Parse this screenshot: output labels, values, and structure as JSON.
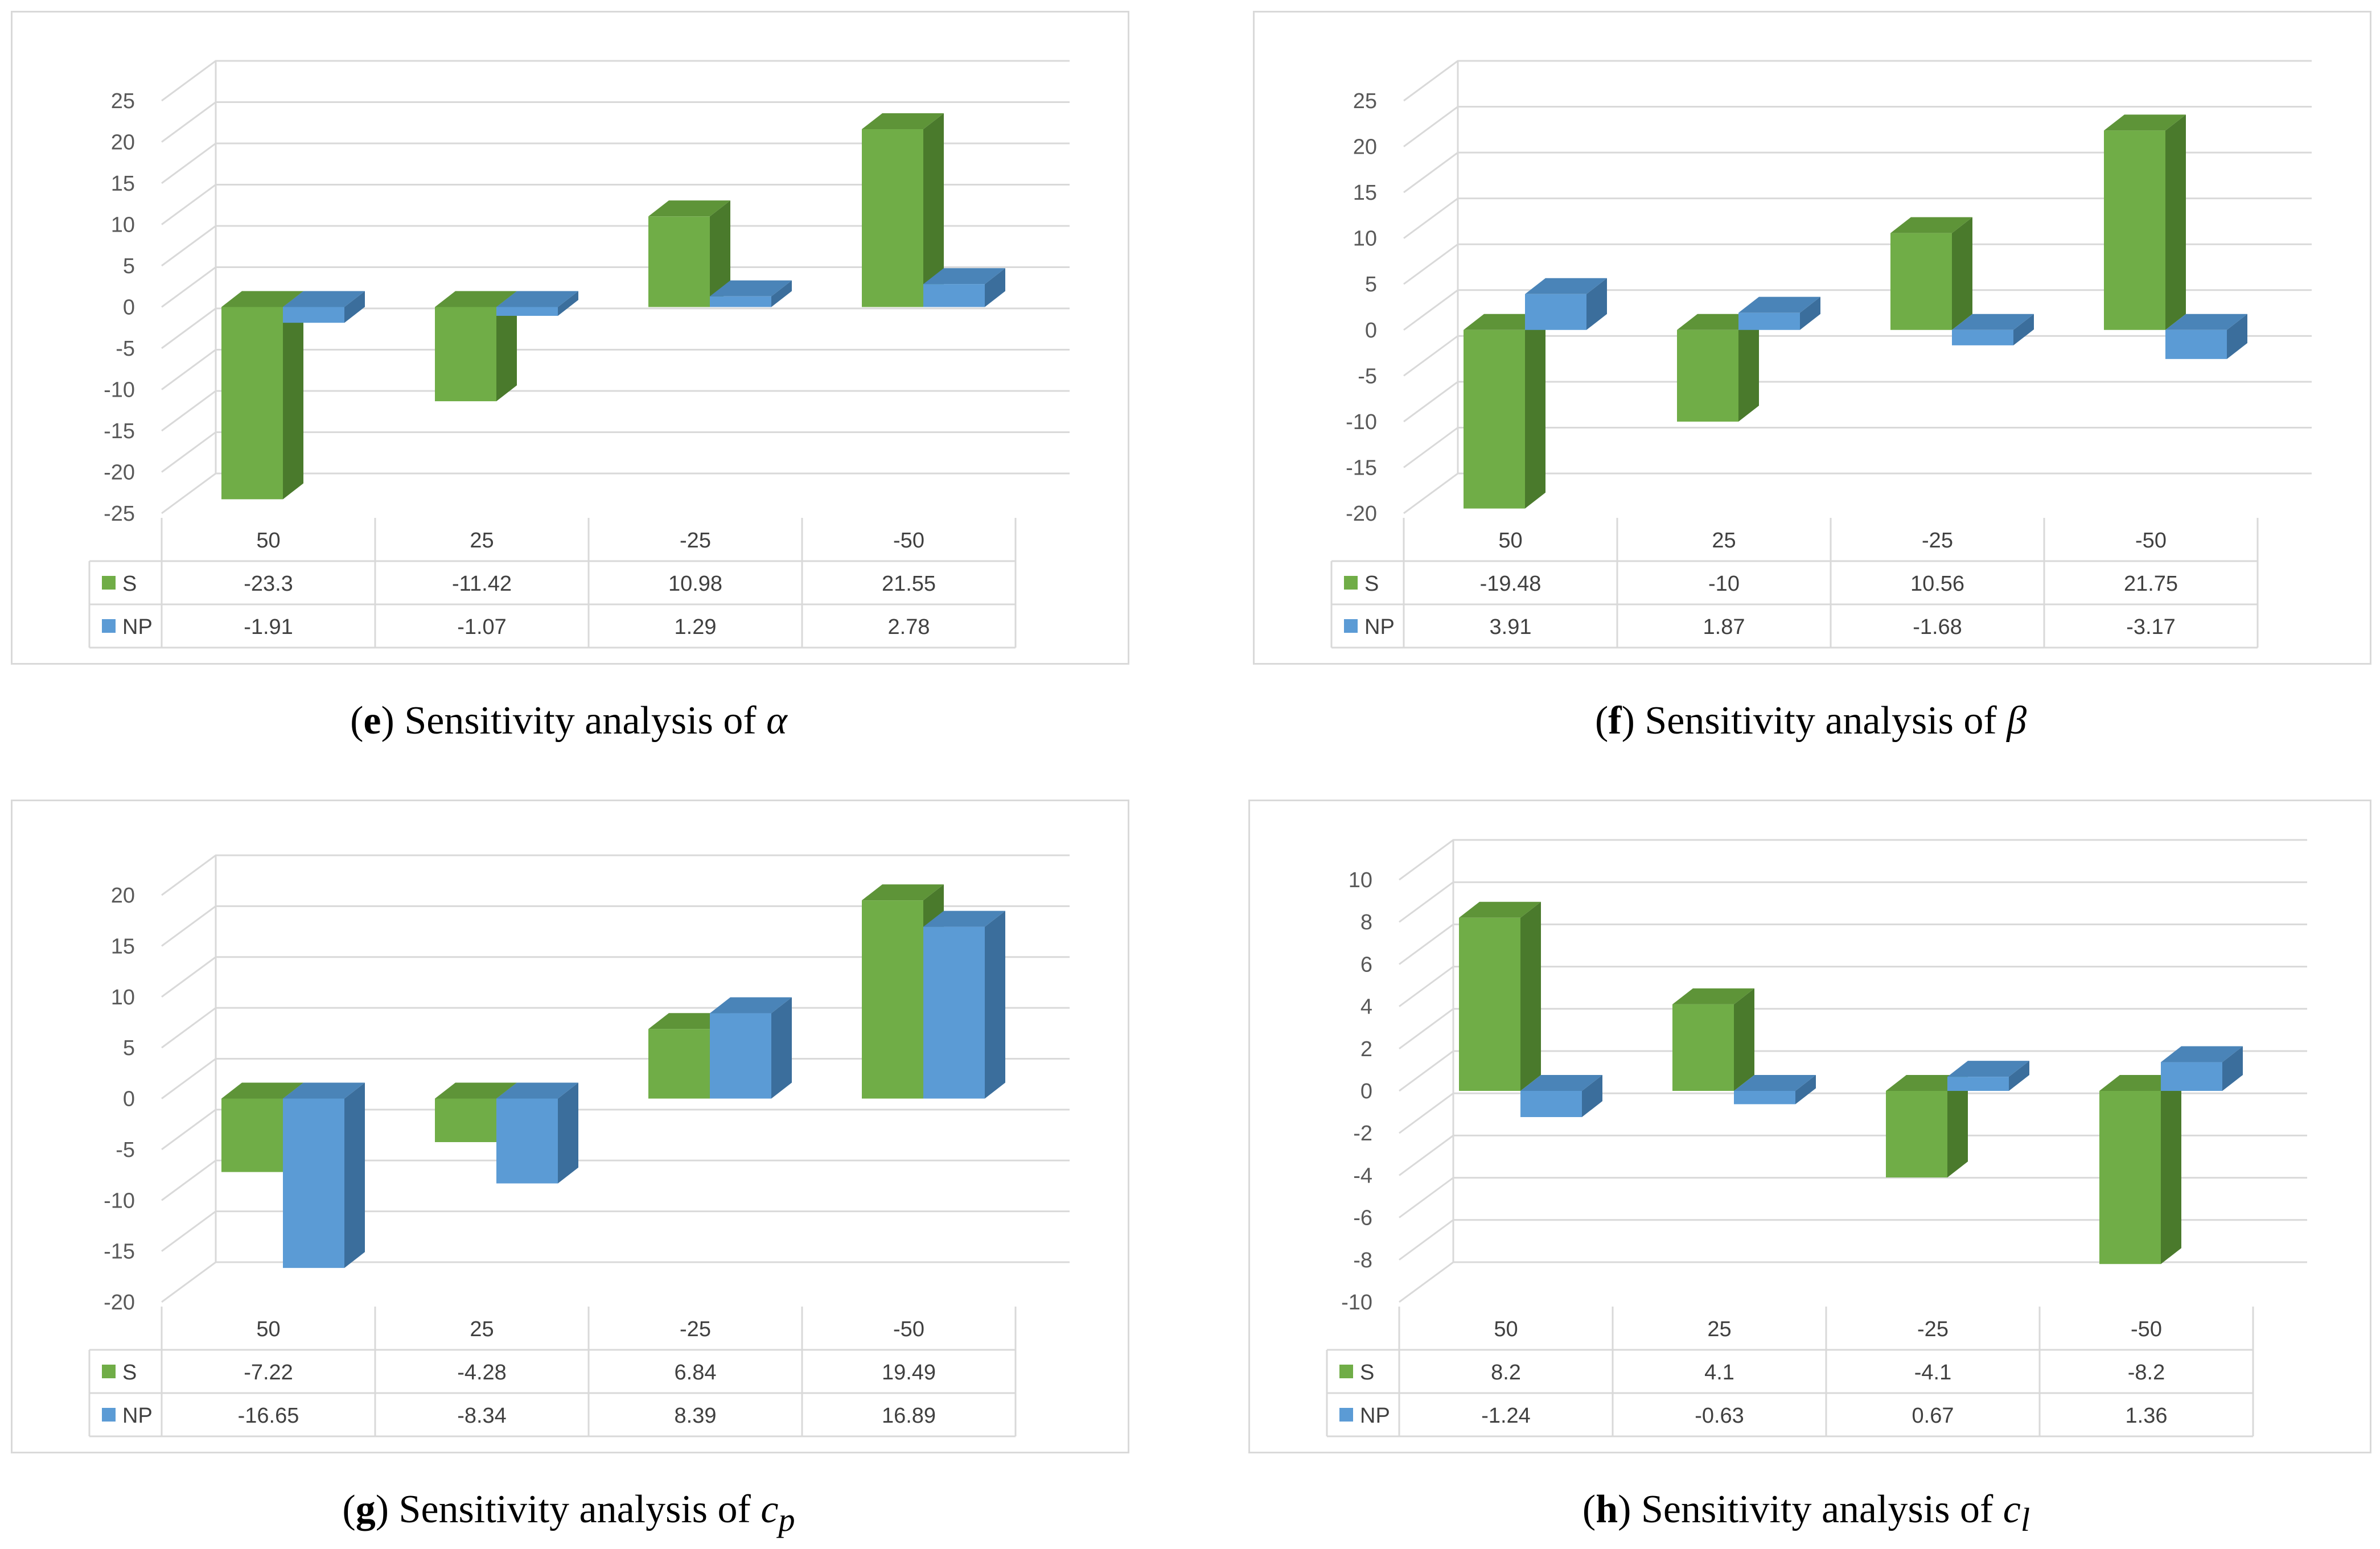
{
  "colors": {
    "S": "#70AD47",
    "S_side": "#4A7A2C",
    "S_top": "#5E9438",
    "NP": "#5B9BD5",
    "NP_side": "#3B6E9C",
    "NP_top": "#4A84B8",
    "grid": "#D9D9D9",
    "text": "#595959"
  },
  "captions": [
    {
      "letter": "e",
      "text": "Sensitivity analysis of",
      "symbol": "α",
      "sub": ""
    },
    {
      "letter": "f",
      "text": "Sensitivity analysis of",
      "symbol": "β",
      "sub": ""
    },
    {
      "letter": "g",
      "text": "Sensitivity analysis of",
      "symbol": "c",
      "sub": "p"
    },
    {
      "letter": "h",
      "text": "Sensitivity analysis of",
      "symbol": "c",
      "sub": "l"
    }
  ],
  "chart_data": [
    {
      "type": "bar",
      "title": "(e) Sensitivity analysis of α",
      "categories": [
        "50",
        "25",
        "-25",
        "-50"
      ],
      "series": [
        {
          "name": "S",
          "values": [
            -23.3,
            -11.42,
            10.98,
            21.55
          ],
          "labels": [
            "-23.3",
            "-11.42",
            "10.98",
            "21.55"
          ]
        },
        {
          "name": "NP",
          "values": [
            -1.91,
            -1.07,
            1.29,
            2.78
          ],
          "labels": [
            "-1.91",
            "-1.07",
            "1.29",
            "2.78"
          ]
        }
      ],
      "ylim": [
        -25,
        25
      ],
      "yticks": [
        "25",
        "20",
        "15",
        "10",
        "5",
        "0",
        "-5",
        "-10",
        "-15",
        "-20",
        "-25"
      ],
      "grid": true,
      "legend": "data-table"
    },
    {
      "type": "bar",
      "title": "(f) Sensitivity analysis of β",
      "categories": [
        "50",
        "25",
        "-25",
        "-50"
      ],
      "series": [
        {
          "name": "S",
          "values": [
            -19.48,
            -10,
            10.56,
            21.75
          ],
          "labels": [
            "-19.48",
            "-10",
            "10.56",
            "21.75"
          ]
        },
        {
          "name": "NP",
          "values": [
            3.91,
            1.87,
            -1.68,
            -3.17
          ],
          "labels": [
            "3.91",
            "1.87",
            "-1.68",
            "-3.17"
          ]
        }
      ],
      "ylim": [
        -20,
        25
      ],
      "yticks": [
        "25",
        "20",
        "15",
        "10",
        "5",
        "0",
        "-5",
        "-10",
        "-15",
        "-20"
      ],
      "grid": true,
      "legend": "data-table"
    },
    {
      "type": "bar",
      "title": "(g) Sensitivity analysis of cp",
      "categories": [
        "50",
        "25",
        "-25",
        "-50"
      ],
      "series": [
        {
          "name": "S",
          "values": [
            -7.22,
            -4.28,
            6.84,
            19.49
          ],
          "labels": [
            "-7.22",
            "-4.28",
            "6.84",
            "19.49"
          ]
        },
        {
          "name": "NP",
          "values": [
            -16.65,
            -8.34,
            8.39,
            16.89
          ],
          "labels": [
            "-16.65",
            "-8.34",
            "8.39",
            "16.89"
          ]
        }
      ],
      "ylim": [
        -20,
        20
      ],
      "yticks": [
        "20",
        "15",
        "10",
        "5",
        "0",
        "-5",
        "-10",
        "-15",
        "-20"
      ],
      "grid": true,
      "legend": "data-table"
    },
    {
      "type": "bar",
      "title": "(h) Sensitivity analysis of cl",
      "categories": [
        "50",
        "25",
        "-25",
        "-50"
      ],
      "series": [
        {
          "name": "S",
          "values": [
            8.2,
            4.1,
            -4.1,
            -8.2
          ],
          "labels": [
            "8.2",
            "4.1",
            "-4.1",
            "-8.2"
          ]
        },
        {
          "name": "NP",
          "values": [
            -1.24,
            -0.63,
            0.67,
            1.36
          ],
          "labels": [
            "-1.24",
            "-0.63",
            "0.67",
            "1.36"
          ]
        }
      ],
      "ylim": [
        -10,
        10
      ],
      "yticks": [
        "10",
        "8",
        "6",
        "4",
        "2",
        "0",
        "-2",
        "-4",
        "-6",
        "-8",
        "-10"
      ],
      "grid": true,
      "legend": "data-table"
    }
  ]
}
